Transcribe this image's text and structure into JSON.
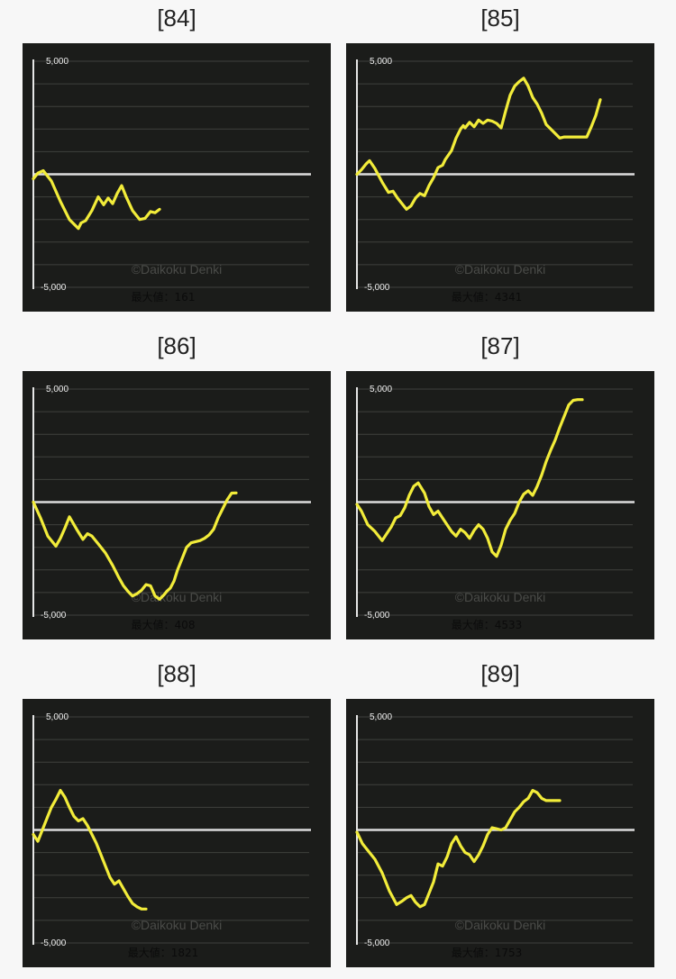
{
  "colors": {
    "page_bg": "#f7f7f7",
    "chart_bg": "#1b1c1a",
    "line": "#f2ec3a",
    "grid": "#3f403d",
    "zero_line": "#dcdcdc",
    "axis": "#e6e6e6",
    "watermark": "#4a4b48",
    "caption": "#0b0b0b"
  },
  "common": {
    "watermark": "©Daikoku Denki",
    "caption_prefix": "最大値：",
    "y_top_label": "5,000",
    "y_bottom_label": "-5,000"
  },
  "chart_data": [
    {
      "type": "line",
      "title": "[84]",
      "max_value": "161",
      "ylim": [
        -5000,
        5000
      ],
      "y_ticks": [
        5000,
        -5000
      ],
      "grid": true,
      "x": [
        0,
        5,
        11,
        20,
        30,
        40,
        50,
        53,
        58,
        65,
        72,
        78,
        83,
        88,
        93,
        98,
        103,
        110,
        118,
        124,
        130,
        135,
        140
      ],
      "y": [
        -200,
        50,
        161,
        -300,
        -1200,
        -2000,
        -2400,
        -2150,
        -2050,
        -1600,
        -1000,
        -1350,
        -1050,
        -1300,
        -850,
        -500,
        -1000,
        -1600,
        -2000,
        -1950,
        -1650,
        -1700,
        -1550
      ]
    },
    {
      "type": "line",
      "title": "[85]",
      "max_value": "4341",
      "ylim": [
        -5000,
        5000
      ],
      "y_ticks": [
        5000,
        -5000
      ],
      "grid": true,
      "x": [
        0,
        5,
        10,
        14,
        20,
        28,
        35,
        40,
        45,
        50,
        55,
        60,
        65,
        70,
        75,
        80,
        85,
        90,
        95,
        98,
        105,
        110,
        115,
        118,
        120,
        125,
        130,
        135,
        140,
        145,
        150,
        155,
        160,
        165,
        170,
        175,
        180,
        185,
        190,
        195,
        200,
        205,
        210,
        215,
        220,
        225,
        230,
        235,
        240,
        245,
        250,
        255,
        260,
        265,
        270
      ],
      "y": [
        0,
        200,
        450,
        600,
        250,
        -350,
        -800,
        -750,
        -1050,
        -1300,
        -1550,
        -1400,
        -1050,
        -850,
        -950,
        -500,
        -150,
        300,
        400,
        650,
        1050,
        1600,
        2000,
        2150,
        2050,
        2300,
        2100,
        2400,
        2250,
        2400,
        2350,
        2250,
        2050,
        2800,
        3500,
        3900,
        4100,
        4250,
        3900,
        3400,
        3100,
        2700,
        2200,
        2000,
        1800,
        1600,
        1650,
        1650,
        1650,
        1650,
        1650,
        1650,
        2100,
        2600,
        3300
      ]
    },
    {
      "type": "line",
      "title": "[86]",
      "max_value": "408",
      "ylim": [
        -5000,
        5000
      ],
      "y_ticks": [
        5000,
        -5000
      ],
      "grid": true,
      "x": [
        0,
        8,
        16,
        25,
        30,
        35,
        40,
        48,
        55,
        60,
        65,
        72,
        80,
        88,
        95,
        100,
        105,
        110,
        115,
        120,
        125,
        130,
        135,
        140,
        145,
        148,
        152,
        156,
        160,
        165,
        170,
        175,
        180,
        185,
        190,
        195,
        200,
        205,
        210,
        215,
        220,
        225
      ],
      "y": [
        0,
        -700,
        -1500,
        -1950,
        -1600,
        -1150,
        -650,
        -1200,
        -1650,
        -1400,
        -1500,
        -1850,
        -2250,
        -2800,
        -3350,
        -3700,
        -3950,
        -4150,
        -4050,
        -3900,
        -3650,
        -3700,
        -4150,
        -4300,
        -4100,
        -3950,
        -3800,
        -3500,
        -3000,
        -2500,
        -2000,
        -1800,
        -1750,
        -1700,
        -1600,
        -1450,
        -1200,
        -700,
        -300,
        100,
        400,
        408
      ]
    },
    {
      "type": "line",
      "title": "[87]",
      "max_value": "4533",
      "ylim": [
        -5000,
        5000
      ],
      "y_ticks": [
        5000,
        -5000
      ],
      "grid": true,
      "x": [
        0,
        5,
        12,
        20,
        28,
        33,
        38,
        43,
        48,
        53,
        58,
        63,
        68,
        75,
        80,
        85,
        90,
        95,
        100,
        105,
        110,
        115,
        120,
        125,
        130,
        135,
        140,
        145,
        150,
        155,
        160,
        165,
        170,
        175,
        180,
        185,
        190,
        195,
        200,
        205,
        210,
        215,
        220,
        225,
        230,
        235,
        240,
        245,
        250
      ],
      "y": [
        -100,
        -400,
        -1000,
        -1300,
        -1700,
        -1400,
        -1100,
        -700,
        -600,
        -250,
        300,
        700,
        850,
        400,
        -200,
        -550,
        -400,
        -700,
        -1000,
        -1300,
        -1500,
        -1200,
        -1350,
        -1600,
        -1250,
        -1000,
        -1200,
        -1600,
        -2200,
        -2400,
        -1900,
        -1200,
        -800,
        -500,
        0,
        350,
        500,
        300,
        700,
        1200,
        1800,
        2300,
        2750,
        3300,
        3800,
        4300,
        4500,
        4533,
        4533
      ]
    },
    {
      "type": "line",
      "title": "[88]",
      "max_value": "1821",
      "ylim": [
        -5000,
        5000
      ],
      "y_ticks": [
        5000,
        -5000
      ],
      "grid": true,
      "x": [
        0,
        5,
        10,
        15,
        20,
        25,
        30,
        35,
        40,
        45,
        50,
        55,
        60,
        65,
        70,
        75,
        80,
        85,
        90,
        95,
        100,
        105,
        110,
        115,
        120,
        125
      ],
      "y": [
        -200,
        -500,
        0,
        500,
        1000,
        1350,
        1750,
        1450,
        1000,
        600,
        400,
        500,
        200,
        -200,
        -600,
        -1100,
        -1600,
        -2100,
        -2400,
        -2250,
        -2600,
        -2950,
        -3250,
        -3400,
        -3500,
        -3500
      ]
    },
    {
      "type": "line",
      "title": "[89]",
      "max_value": "1753",
      "ylim": [
        -5000,
        5000
      ],
      "y_ticks": [
        5000,
        -5000
      ],
      "grid": true,
      "x": [
        0,
        6,
        12,
        20,
        28,
        36,
        44,
        50,
        55,
        60,
        65,
        70,
        75,
        80,
        85,
        90,
        95,
        100,
        105,
        110,
        115,
        120,
        125,
        130,
        135,
        140,
        145,
        150,
        155,
        160,
        165,
        170,
        175,
        180,
        185,
        190,
        195,
        200,
        205,
        210,
        215,
        220,
        225
      ],
      "y": [
        -100,
        -600,
        -900,
        -1300,
        -1900,
        -2700,
        -3300,
        -3150,
        -3000,
        -2900,
        -3200,
        -3400,
        -3300,
        -2800,
        -2300,
        -1500,
        -1600,
        -1200,
        -600,
        -300,
        -700,
        -1000,
        -1100,
        -1400,
        -1100,
        -700,
        -200,
        100,
        50,
        0,
        100,
        450,
        800,
        1000,
        1250,
        1400,
        1750,
        1650,
        1400,
        1300,
        1300,
        1300,
        1300
      ]
    }
  ]
}
